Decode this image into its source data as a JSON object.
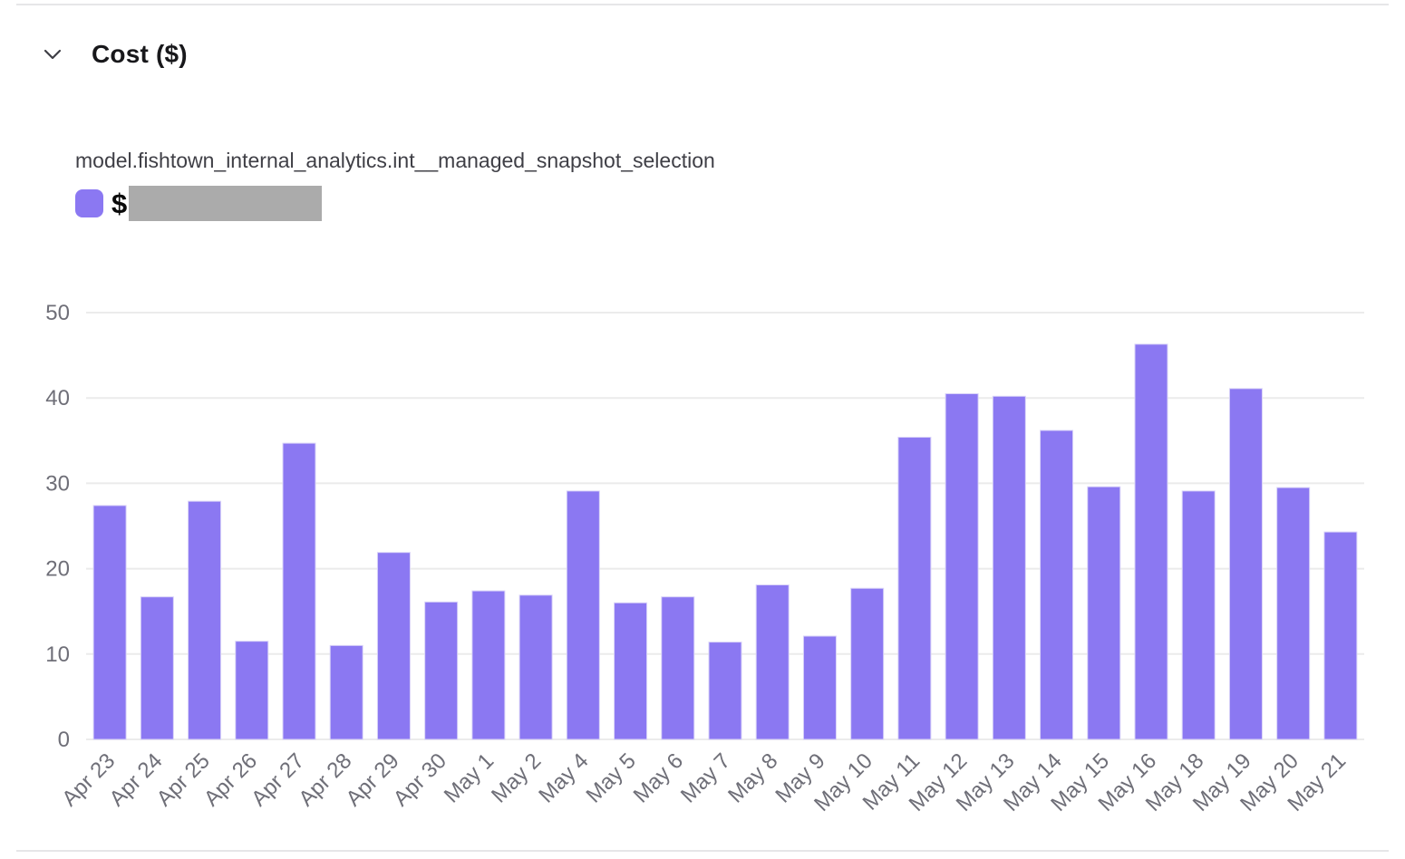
{
  "section": {
    "title": "Cost ($)"
  },
  "legend": {
    "series_name": "model.fishtown_internal_analytics.int__managed_snapshot_selection",
    "value_prefix": "$",
    "value_redacted": true
  },
  "colors": {
    "bar": "#8b78f2",
    "bar_edge": "#d9d3f8",
    "grid": "#ebebeb",
    "axis_label": "#6f6f78",
    "title": "#18181b",
    "series_label": "#3f3f46",
    "redacted_box": "#ababab",
    "divider": "#e6e6e8",
    "chevron": "#3f3f46"
  },
  "chart_data": {
    "type": "bar",
    "title": "Cost ($)",
    "categories": [
      "Apr 23",
      "Apr 24",
      "Apr 25",
      "Apr 26",
      "Apr 27",
      "Apr 28",
      "Apr 29",
      "Apr 30",
      "May 1",
      "May 2",
      "May 4",
      "May 5",
      "May 6",
      "May 7",
      "May 8",
      "May 9",
      "May 10",
      "May 11",
      "May 12",
      "May 13",
      "May 14",
      "May 15",
      "May 16",
      "May 18",
      "May 19",
      "May 20",
      "May 21"
    ],
    "series": [
      {
        "name": "model.fishtown_internal_analytics.int__managed_snapshot_selection",
        "values": [
          27.4,
          16.7,
          27.9,
          11.5,
          34.7,
          11.0,
          21.9,
          16.1,
          17.4,
          16.9,
          29.1,
          16.0,
          16.7,
          11.4,
          18.1,
          12.1,
          17.7,
          35.4,
          40.5,
          40.2,
          36.2,
          29.6,
          46.3,
          29.1,
          41.1,
          29.5,
          24.3
        ]
      }
    ],
    "xlabel": "",
    "ylabel": "",
    "ylim": [
      0,
      50
    ],
    "yticks": [
      0,
      10,
      20,
      30,
      40,
      50
    ],
    "grid": true,
    "legend_position": "top-left",
    "x_tick_rotation": -45
  }
}
